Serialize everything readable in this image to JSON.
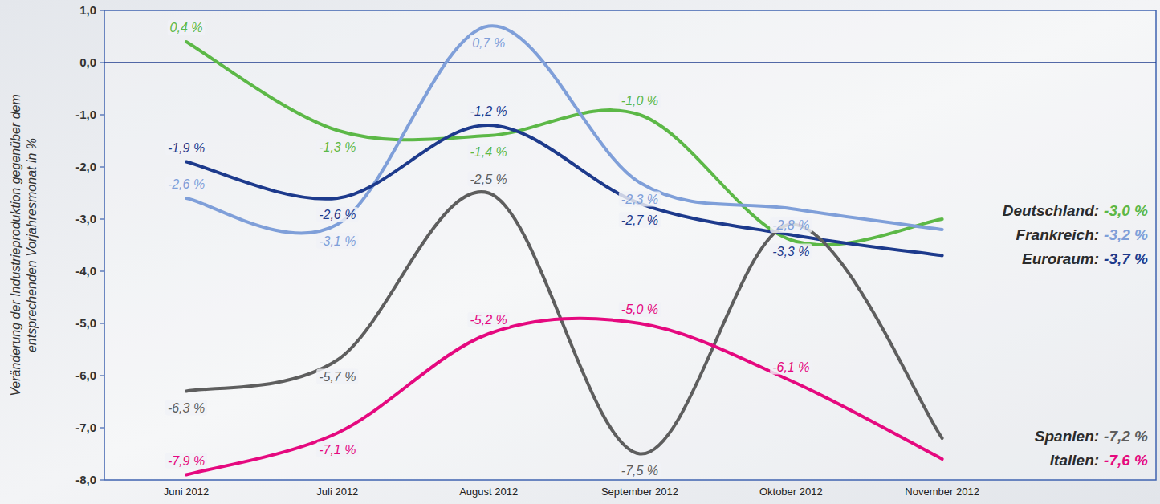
{
  "chart_data": {
    "type": "line",
    "y_label": "Veränderung der Industrieproduktion gegenüber dem entsprechenden Vorjahresmonat in %",
    "categories": [
      "Juni 2012",
      "Juli 2012",
      "August 2012",
      "September 2012",
      "Oktober 2012",
      "November 2012"
    ],
    "series": [
      {
        "name": "Deutschland:",
        "color": "#5cb847",
        "values": [
          0.4,
          -1.3,
          -1.4,
          -1.0,
          -3.4,
          -3.0
        ],
        "value_labels": [
          "0,4 %",
          "-1,3 %",
          "-1,4 %",
          "-1,0 %",
          null,
          "-3,0 %"
        ]
      },
      {
        "name": "Frankreich:",
        "color": "#7f9fd9",
        "values": [
          -2.6,
          -3.1,
          0.7,
          -2.3,
          -2.8,
          -3.2
        ],
        "value_labels": [
          "-2,6 %",
          "-3,1 %",
          "0,7 %",
          "-2,3 %",
          "-2,8 %",
          "-3,2 %"
        ]
      },
      {
        "name": "Euroraum:",
        "color": "#1d3a8c",
        "values": [
          -1.9,
          -2.6,
          -1.2,
          -2.7,
          -3.3,
          -3.7
        ],
        "value_labels": [
          "-1,9 %",
          "-2,6 %",
          "-1,2 %",
          "-2,7 %",
          "-3,3 %",
          "-3,7 %"
        ]
      },
      {
        "name": "Spanien:",
        "color": "#5e5e5e",
        "values": [
          -6.3,
          -5.7,
          -2.5,
          -7.5,
          -3.1,
          -7.2
        ],
        "value_labels": [
          "-6,3 %",
          "-5,7 %",
          "-2,5 %",
          "-7,5 %",
          null,
          "-7,2 %"
        ]
      },
      {
        "name": "Italien:",
        "color": "#e5097f",
        "values": [
          -7.9,
          -7.1,
          -5.2,
          -5.0,
          -6.1,
          -7.6
        ],
        "value_labels": [
          "-7,9 %",
          "-7,1 %",
          "-5,2 %",
          "-5,0 %",
          "-6,1 %",
          "-7,6 %"
        ]
      }
    ],
    "ylim": [
      -8,
      1
    ],
    "yticks": [
      {
        "value": -8,
        "label": "-8,0"
      },
      {
        "value": -7,
        "label": "-7,0"
      },
      {
        "value": -6,
        "label": "-6,0"
      },
      {
        "value": -5,
        "label": "-5,0"
      },
      {
        "value": -4,
        "label": "-4,0"
      },
      {
        "value": -3,
        "label": "-3,0"
      },
      {
        "value": -2,
        "label": "-2,0"
      },
      {
        "value": -1,
        "label": "-1,0"
      },
      {
        "value": 0,
        "label": "0,0"
      },
      {
        "value": 1,
        "label": "1,0"
      }
    ],
    "grid": false,
    "data_labels": true,
    "legend": "right"
  }
}
